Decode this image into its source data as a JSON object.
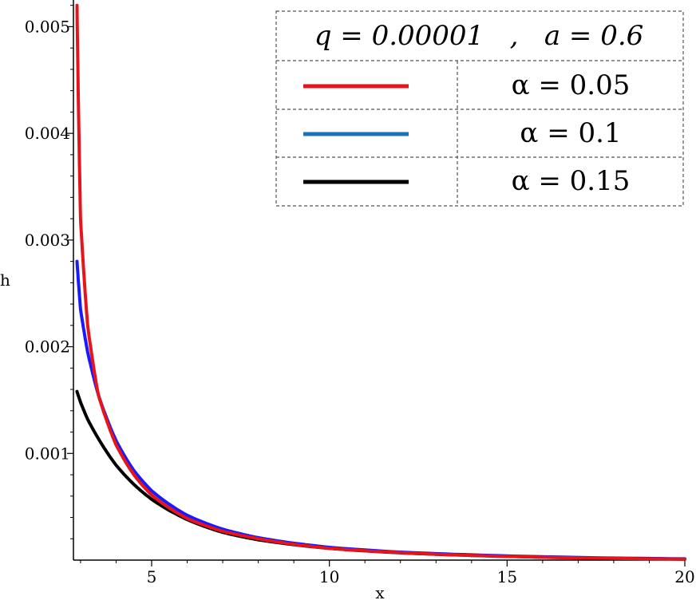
{
  "chart_data": {
    "type": "line",
    "title": "",
    "xlabel": "x",
    "ylabel": "h",
    "xlim": [
      2.8,
      20
    ],
    "ylim": [
      0,
      0.00525
    ],
    "xticks": [
      5,
      10,
      15,
      20
    ],
    "xtick_labels": [
      "5",
      "10",
      "15",
      "20"
    ],
    "yticks": [
      0.001,
      0.002,
      0.003,
      0.004,
      0.005
    ],
    "ytick_labels": [
      "0.001",
      "0.002",
      "0.003",
      "0.004",
      "0.005"
    ],
    "grid": false,
    "legend_position": "top-right",
    "legend_title": "q = 0.00001   ,   a = 0.6",
    "series": [
      {
        "name": "α = 0.05",
        "legend_label": "α = 0.05",
        "color": "#e8141c",
        "legend_color": "#e8141c",
        "x": [
          2.9,
          3.0,
          3.2,
          3.5,
          4.0,
          4.5,
          5.0,
          6.0,
          7.0,
          8.0,
          10.0,
          12.0,
          15.0,
          20.0
        ],
        "y": [
          0.0052,
          0.0032,
          0.0022,
          0.00155,
          0.00108,
          0.0008,
          0.00061,
          0.00039,
          0.00027,
          0.0002,
          0.00011,
          7e-05,
          3.5e-05,
          1e-05
        ]
      },
      {
        "name": "α = 0.1",
        "legend_label": "α = 0.1",
        "color": "#1a1aff",
        "legend_color": "#1a73b8",
        "x": [
          2.9,
          3.0,
          3.2,
          3.5,
          4.0,
          4.5,
          5.0,
          6.0,
          7.0,
          8.0,
          10.0,
          12.0,
          15.0,
          20.0
        ],
        "y": [
          0.0028,
          0.00235,
          0.00195,
          0.00155,
          0.00112,
          0.00084,
          0.00065,
          0.00042,
          0.00029,
          0.00021,
          0.00012,
          7.5e-05,
          4e-05,
          1.2e-05
        ]
      },
      {
        "name": "α = 0.15",
        "legend_label": "α = 0.15",
        "color": "#000000",
        "legend_color": "#000000",
        "x": [
          2.9,
          3.0,
          3.2,
          3.5,
          4.0,
          4.5,
          5.0,
          6.0,
          7.0,
          8.0,
          10.0,
          12.0,
          15.0,
          20.0
        ],
        "y": [
          0.00158,
          0.00148,
          0.00132,
          0.00114,
          0.00089,
          0.00071,
          0.00057,
          0.00038,
          0.00026,
          0.00019,
          0.00011,
          6.8e-05,
          3.5e-05,
          1e-05
        ]
      }
    ]
  }
}
